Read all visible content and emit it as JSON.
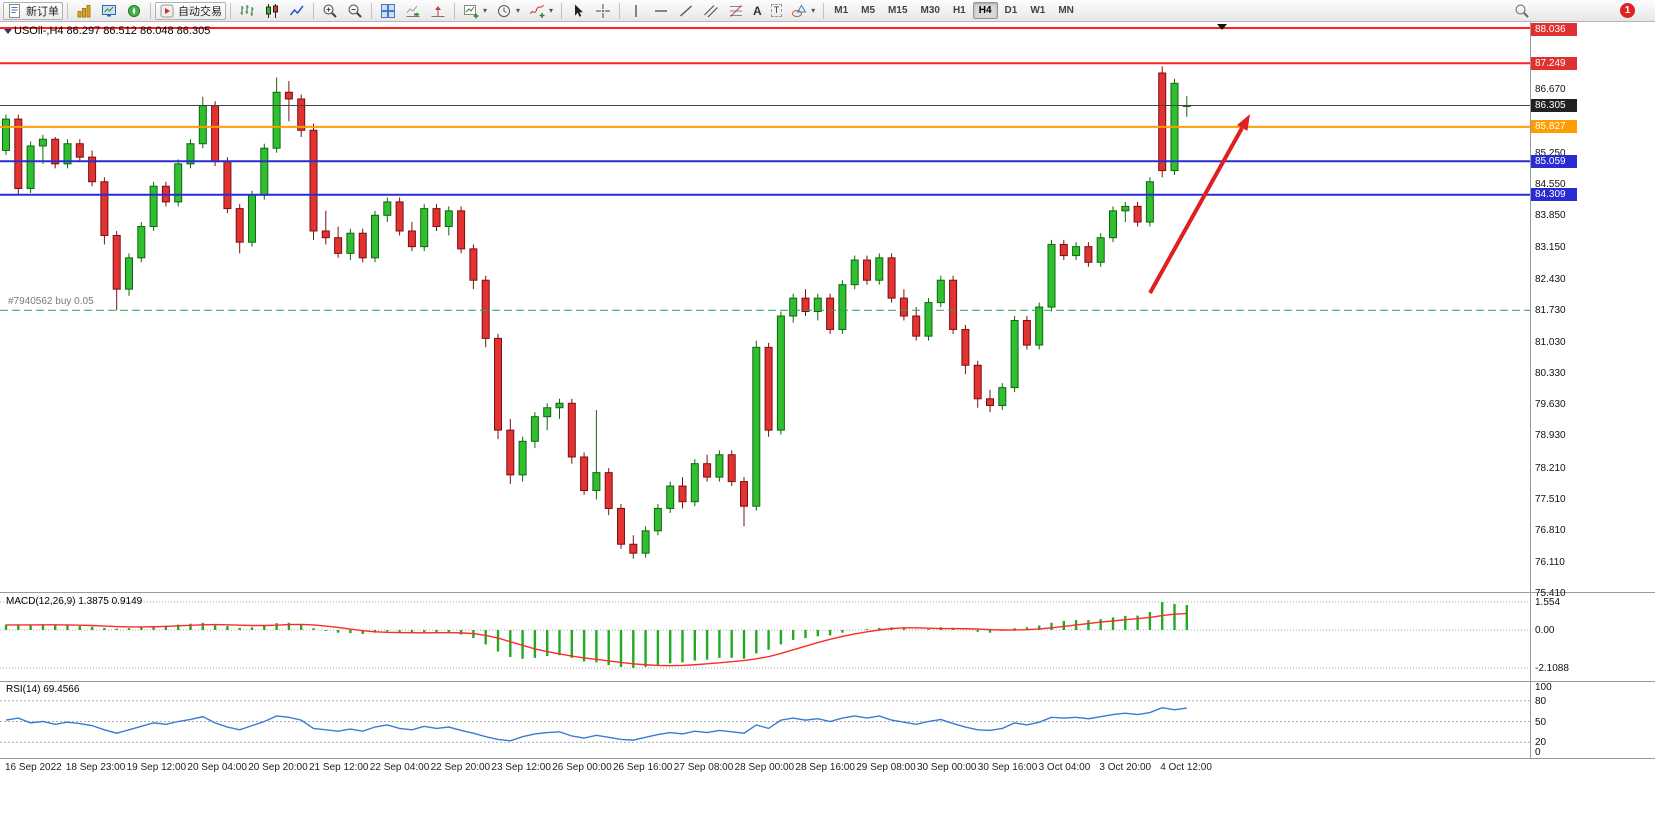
{
  "toolbar": {
    "new_order": "新订单",
    "autotrade": "自动交易",
    "timeframes": [
      "M1",
      "M5",
      "M15",
      "M30",
      "H1",
      "H4",
      "D1",
      "W1",
      "MN"
    ],
    "active_timeframe": "H4",
    "notification_count": "1"
  },
  "chart": {
    "title": "USOil-,H4  86.297 86.512 86.048 86.305",
    "symbol": "USOil-",
    "period": "H4",
    "trade_line_label": "#7940562  buy 0.05",
    "colors": {
      "up": "#2fbf2f",
      "down": "#e23232",
      "macd_bar": "#22aa22",
      "macd_signal": "#ff2a2a",
      "rsi_line": "#3a7bd5",
      "arrow": "#e02020",
      "resistance": "#ff2020",
      "support": "#2b2bd4",
      "orange_level": "#ff9c00",
      "trade_line": "#2aa35a"
    }
  },
  "hlines": [
    {
      "name": "resistance-line-1",
      "price": 88.036,
      "color": "#ff2020",
      "width": 2
    },
    {
      "name": "resistance-line-2",
      "price": 87.249,
      "color": "#ff2020",
      "width": 2
    },
    {
      "name": "current-price-line",
      "price": 86.305,
      "color": "#444444",
      "width": 1
    },
    {
      "name": "orange-level-line",
      "price": 85.827,
      "color": "#ff9c00",
      "width": 2
    },
    {
      "name": "support-line-1",
      "price": 85.059,
      "color": "#2b2bd4",
      "width": 2
    },
    {
      "name": "support-line-2",
      "price": 84.309,
      "color": "#2b2bd4",
      "width": 2
    },
    {
      "name": "open-position-line",
      "price": 81.73,
      "color": "#2aa35a",
      "width": 1,
      "dash": "8,4"
    }
  ],
  "price_axis": {
    "ticks": [
      "86.670",
      "85.250",
      "84.550",
      "83.850",
      "83.150",
      "82.430",
      "81.730",
      "81.030",
      "80.330",
      "79.630",
      "78.930",
      "78.210",
      "77.510",
      "76.810",
      "76.110",
      "75.410"
    ],
    "badges": [
      {
        "text": "88.036",
        "price": 88.036,
        "bg": "#e03131",
        "fg": "#ffffff"
      },
      {
        "text": "87.249",
        "price": 87.249,
        "bg": "#e03131",
        "fg": "#ffffff"
      },
      {
        "text": "86.305",
        "price": 86.305,
        "bg": "#222222",
        "fg": "#ffffff"
      },
      {
        "text": "85.827",
        "price": 85.827,
        "bg": "#ff9c00",
        "fg": "#ffffff"
      },
      {
        "text": "85.059",
        "price": 85.059,
        "bg": "#2b2bd4",
        "fg": "#ffffff"
      },
      {
        "text": "84.309",
        "price": 84.309,
        "bg": "#2b2bd4",
        "fg": "#ffffff"
      }
    ]
  },
  "indicators": {
    "macd": {
      "label": "MACD(12,26,9) 1.3875 0.9149",
      "ticks": [
        "1.554",
        "0.00",
        "-2.1088"
      ],
      "tick_values": [
        1.554,
        0,
        -2.1088
      ]
    },
    "rsi": {
      "label": "RSI(14) 69.4566",
      "ticks": [
        "100",
        "80",
        "50",
        "20",
        "0"
      ],
      "tick_values": [
        100,
        80,
        50,
        20,
        0
      ],
      "levels": [
        80,
        50,
        20
      ]
    }
  },
  "chart_data": {
    "type": "candlestick",
    "symbol": "USOil-",
    "timeframe": "H4",
    "current_ohlc": {
      "open": 86.297,
      "high": 86.512,
      "low": 86.048,
      "close": 86.305
    },
    "price_axis_range": [
      75.41,
      88.036
    ],
    "time_labels": [
      "16 Sep 2022",
      "18 Sep 23:00",
      "19 Sep 12:00",
      "20 Sep 04:00",
      "20 Sep 20:00",
      "21 Sep 12:00",
      "22 Sep 04:00",
      "22 Sep 20:00",
      "23 Sep 12:00",
      "26 Sep 00:00",
      "26 Sep 16:00",
      "27 Sep 08:00",
      "28 Sep 00:00",
      "28 Sep 16:00",
      "29 Sep 08:00",
      "30 Sep 00:00",
      "30 Sep 16:00",
      "3 Oct 04:00",
      "3 Oct 20:00",
      "4 Oct 12:00"
    ],
    "candles_ohlc": [
      [
        85.3,
        86.1,
        85.2,
        86.0
      ],
      [
        86.0,
        86.1,
        84.3,
        84.45
      ],
      [
        84.45,
        85.5,
        84.35,
        85.4
      ],
      [
        85.4,
        85.65,
        85.0,
        85.55
      ],
      [
        85.55,
        85.6,
        84.9,
        85.0
      ],
      [
        85.0,
        85.55,
        84.9,
        85.45
      ],
      [
        85.45,
        85.55,
        85.05,
        85.15
      ],
      [
        85.15,
        85.3,
        84.5,
        84.6
      ],
      [
        84.6,
        84.7,
        83.2,
        83.4
      ],
      [
        83.4,
        83.5,
        81.73,
        82.2
      ],
      [
        82.2,
        83.0,
        82.05,
        82.9
      ],
      [
        82.9,
        83.7,
        82.8,
        83.6
      ],
      [
        83.6,
        84.6,
        83.5,
        84.5
      ],
      [
        84.5,
        84.6,
        84.05,
        84.15
      ],
      [
        84.15,
        85.1,
        84.05,
        85.0
      ],
      [
        85.0,
        85.55,
        84.9,
        85.45
      ],
      [
        85.45,
        86.5,
        85.35,
        86.3
      ],
      [
        86.3,
        86.4,
        84.95,
        85.05
      ],
      [
        85.05,
        85.15,
        83.9,
        84.0
      ],
      [
        84.0,
        84.1,
        83.0,
        83.25
      ],
      [
        83.25,
        84.4,
        83.15,
        84.3
      ],
      [
        84.3,
        85.45,
        84.2,
        85.35
      ],
      [
        85.35,
        86.93,
        85.25,
        86.6
      ],
      [
        86.6,
        86.85,
        85.95,
        86.45
      ],
      [
        86.45,
        86.55,
        85.6,
        85.75
      ],
      [
        85.75,
        85.9,
        83.3,
        83.5
      ],
      [
        83.5,
        83.95,
        83.2,
        83.35
      ],
      [
        83.35,
        83.6,
        82.9,
        83.0
      ],
      [
        83.0,
        83.55,
        82.85,
        83.45
      ],
      [
        83.45,
        83.55,
        82.8,
        82.9
      ],
      [
        82.9,
        83.95,
        82.8,
        83.85
      ],
      [
        83.85,
        84.25,
        83.7,
        84.15
      ],
      [
        84.15,
        84.25,
        83.4,
        83.5
      ],
      [
        83.5,
        83.7,
        83.05,
        83.15
      ],
      [
        83.15,
        84.1,
        83.05,
        84.0
      ],
      [
        84.0,
        84.1,
        83.5,
        83.6
      ],
      [
        83.6,
        84.05,
        83.4,
        83.95
      ],
      [
        83.95,
        84.05,
        83.0,
        83.1
      ],
      [
        83.1,
        83.2,
        82.2,
        82.4
      ],
      [
        82.4,
        82.5,
        80.9,
        81.1
      ],
      [
        81.1,
        81.2,
        78.85,
        79.05
      ],
      [
        79.05,
        79.3,
        77.85,
        78.05
      ],
      [
        78.05,
        78.9,
        77.9,
        78.8
      ],
      [
        78.8,
        79.45,
        78.65,
        79.35
      ],
      [
        79.35,
        79.65,
        79.05,
        79.55
      ],
      [
        79.55,
        79.75,
        79.3,
        79.65
      ],
      [
        79.65,
        79.75,
        78.3,
        78.45
      ],
      [
        78.45,
        78.55,
        77.6,
        77.7
      ],
      [
        77.7,
        79.5,
        77.5,
        78.1
      ],
      [
        78.1,
        78.2,
        77.15,
        77.3
      ],
      [
        77.3,
        77.4,
        76.4,
        76.5
      ],
      [
        76.5,
        76.7,
        76.18,
        76.3
      ],
      [
        76.3,
        76.9,
        76.2,
        76.8
      ],
      [
        76.8,
        77.4,
        76.7,
        77.3
      ],
      [
        77.3,
        77.9,
        77.2,
        77.8
      ],
      [
        77.8,
        78.0,
        77.3,
        77.45
      ],
      [
        77.45,
        78.4,
        77.35,
        78.3
      ],
      [
        78.3,
        78.5,
        77.9,
        78.0
      ],
      [
        78.0,
        78.6,
        77.9,
        78.5
      ],
      [
        78.5,
        78.6,
        77.8,
        77.9
      ],
      [
        77.9,
        78.0,
        76.9,
        77.35
      ],
      [
        77.35,
        81.05,
        77.25,
        80.9
      ],
      [
        80.9,
        81.0,
        78.9,
        79.05
      ],
      [
        79.05,
        81.7,
        78.95,
        81.6
      ],
      [
        81.6,
        82.1,
        81.45,
        82.0
      ],
      [
        82.0,
        82.2,
        81.6,
        81.7
      ],
      [
        81.7,
        82.1,
        81.5,
        82.0
      ],
      [
        82.0,
        82.1,
        81.2,
        81.3
      ],
      [
        81.3,
        82.4,
        81.2,
        82.3
      ],
      [
        82.3,
        82.95,
        82.2,
        82.85
      ],
      [
        82.85,
        82.95,
        82.3,
        82.4
      ],
      [
        82.4,
        83.0,
        82.3,
        82.9
      ],
      [
        82.9,
        83.0,
        81.9,
        82.0
      ],
      [
        82.0,
        82.2,
        81.5,
        81.6
      ],
      [
        81.6,
        81.8,
        81.05,
        81.15
      ],
      [
        81.15,
        82.0,
        81.05,
        81.9
      ],
      [
        81.9,
        82.5,
        81.8,
        82.4
      ],
      [
        82.4,
        82.5,
        81.2,
        81.3
      ],
      [
        81.3,
        81.4,
        80.3,
        80.5
      ],
      [
        80.5,
        80.6,
        79.55,
        79.75
      ],
      [
        79.75,
        79.95,
        79.45,
        79.6
      ],
      [
        79.6,
        80.1,
        79.5,
        80.0
      ],
      [
        80.0,
        81.6,
        79.9,
        81.5
      ],
      [
        81.5,
        81.6,
        80.85,
        80.95
      ],
      [
        80.95,
        81.9,
        80.85,
        81.8
      ],
      [
        81.8,
        83.3,
        81.7,
        83.2
      ],
      [
        83.2,
        83.3,
        82.85,
        82.95
      ],
      [
        82.95,
        83.25,
        82.85,
        83.15
      ],
      [
        83.15,
        83.25,
        82.7,
        82.8
      ],
      [
        82.8,
        83.45,
        82.7,
        83.35
      ],
      [
        83.35,
        84.05,
        83.25,
        83.95
      ],
      [
        83.95,
        84.15,
        83.7,
        84.05
      ],
      [
        84.05,
        84.15,
        83.6,
        83.7
      ],
      [
        83.7,
        84.7,
        83.6,
        84.6
      ],
      [
        87.03,
        87.18,
        84.7,
        84.85
      ],
      [
        84.85,
        86.9,
        84.75,
        86.8
      ],
      [
        86.297,
        86.512,
        86.048,
        86.305
      ]
    ],
    "macd_hist": [
      0.3,
      0.25,
      0.28,
      0.32,
      0.3,
      0.26,
      0.22,
      0.18,
      0.12,
      0.08,
      0.1,
      0.15,
      0.22,
      0.25,
      0.3,
      0.35,
      0.4,
      0.32,
      0.22,
      0.12,
      0.15,
      0.25,
      0.38,
      0.4,
      0.32,
      0.1,
      -0.05,
      -0.15,
      -0.18,
      -0.22,
      -0.15,
      -0.08,
      -0.1,
      -0.18,
      -0.12,
      -0.15,
      -0.12,
      -0.25,
      -0.45,
      -0.8,
      -1.2,
      -1.5,
      -1.6,
      -1.55,
      -1.45,
      -1.4,
      -1.55,
      -1.75,
      -1.8,
      -1.95,
      -2.05,
      -2.11,
      -2.05,
      -1.95,
      -1.85,
      -1.8,
      -1.7,
      -1.65,
      -1.55,
      -1.55,
      -1.6,
      -1.3,
      -1.1,
      -0.8,
      -0.55,
      -0.45,
      -0.35,
      -0.3,
      -0.15,
      0.0,
      0.05,
      0.12,
      0.15,
      0.1,
      0.02,
      0.05,
      0.15,
      0.12,
      0.0,
      -0.1,
      -0.15,
      -0.05,
      0.1,
      0.15,
      0.25,
      0.4,
      0.5,
      0.55,
      0.55,
      0.6,
      0.7,
      0.78,
      0.8,
      1.0,
      1.554,
      1.45,
      1.3875
    ],
    "macd_signal": [
      0.28,
      0.28,
      0.28,
      0.29,
      0.29,
      0.28,
      0.27,
      0.25,
      0.22,
      0.19,
      0.17,
      0.17,
      0.18,
      0.2,
      0.23,
      0.26,
      0.29,
      0.3,
      0.29,
      0.27,
      0.25,
      0.25,
      0.27,
      0.3,
      0.31,
      0.28,
      0.22,
      0.14,
      0.05,
      -0.04,
      -0.1,
      -0.13,
      -0.14,
      -0.15,
      -0.16,
      -0.15,
      -0.15,
      -0.16,
      -0.2,
      -0.3,
      -0.45,
      -0.65,
      -0.85,
      -1.05,
      -1.2,
      -1.33,
      -1.45,
      -1.55,
      -1.63,
      -1.72,
      -1.8,
      -1.88,
      -1.93,
      -1.97,
      -1.98,
      -1.97,
      -1.93,
      -1.88,
      -1.82,
      -1.76,
      -1.7,
      -1.6,
      -1.48,
      -1.3,
      -1.1,
      -0.9,
      -0.7,
      -0.52,
      -0.36,
      -0.22,
      -0.1,
      0.0,
      0.08,
      0.12,
      0.12,
      0.1,
      0.08,
      0.08,
      0.07,
      0.05,
      0.02,
      0.0,
      0.0,
      0.02,
      0.06,
      0.12,
      0.2,
      0.28,
      0.36,
      0.44,
      0.5,
      0.57,
      0.63,
      0.7,
      0.8,
      0.88,
      0.9149
    ],
    "rsi": [
      52,
      55,
      48,
      50,
      46,
      49,
      47,
      44,
      38,
      33,
      38,
      43,
      48,
      46,
      50,
      53,
      57,
      48,
      42,
      38,
      44,
      50,
      58,
      56,
      52,
      40,
      38,
      36,
      39,
      36,
      42,
      45,
      40,
      38,
      43,
      40,
      42,
      37,
      33,
      28,
      24,
      22,
      28,
      32,
      34,
      35,
      29,
      26,
      30,
      27,
      24,
      23,
      27,
      31,
      34,
      32,
      36,
      34,
      37,
      35,
      33,
      45,
      40,
      52,
      55,
      52,
      54,
      50,
      55,
      58,
      55,
      58,
      52,
      49,
      46,
      50,
      53,
      47,
      42,
      38,
      37,
      40,
      48,
      45,
      49,
      56,
      55,
      56,
      54,
      57,
      60,
      62,
      60,
      63,
      70,
      67,
      69.46
    ]
  }
}
